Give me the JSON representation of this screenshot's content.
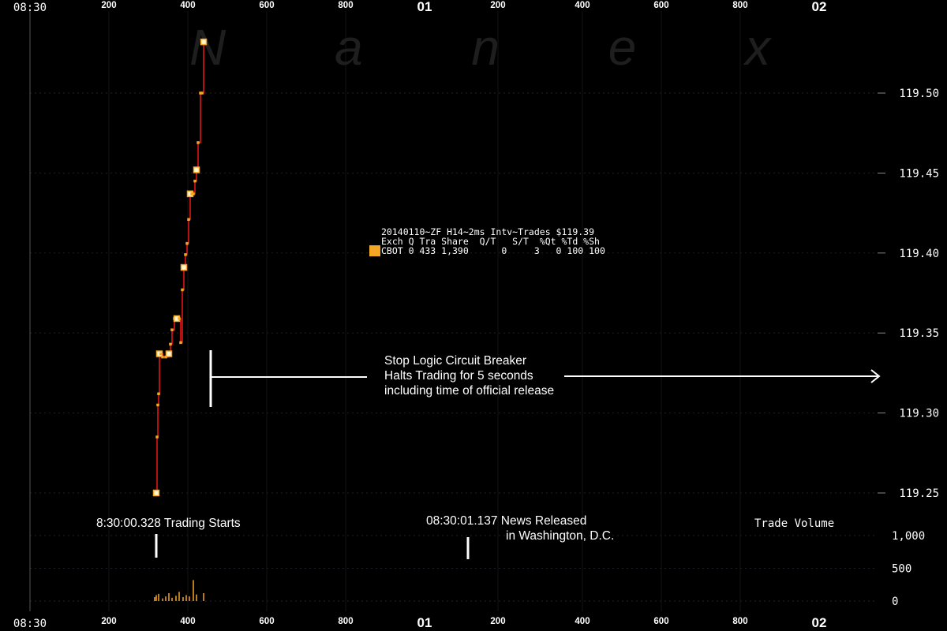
{
  "chart_data": {
    "type": "line",
    "title": "",
    "watermark": "Nanex",
    "x_axis": {
      "time_labels": [
        "08:30",
        "01",
        "02"
      ],
      "tick_labels": [
        "200",
        "400",
        "600",
        "800",
        "200",
        "400",
        "600",
        "800"
      ],
      "unit": "ms"
    },
    "y_axis": {
      "price_ticks": [
        "119.50",
        "119.45",
        "119.40",
        "119.35",
        "119.30",
        "119.25"
      ],
      "price_range": [
        119.233,
        119.548
      ],
      "volume_ticks": [
        "1,000",
        "500",
        "0"
      ],
      "volume_range": [
        0,
        1000
      ]
    },
    "series": [
      {
        "name": "",
        "x_ms": [
          320,
          322,
          324,
          326,
          328,
          332,
          336,
          344,
          352,
          356,
          360,
          366,
          372,
          378,
          382,
          386,
          390,
          394,
          398,
          402,
          406,
          410,
          414,
          418,
          422,
          426,
          432,
          436,
          440
        ],
        "y": [
          119.25,
          119.285,
          119.305,
          119.312,
          119.337,
          119.337,
          119.335,
          119.335,
          119.337,
          119.343,
          119.352,
          119.359,
          119.359,
          119.359,
          119.344,
          119.377,
          119.391,
          119.399,
          119.406,
          119.421,
          119.437,
          119.437,
          119.437,
          119.445,
          119.452,
          119.469,
          119.5,
          119.5,
          119.532
        ],
        "color": "#e01414",
        "marker_color": "#f5a623"
      }
    ],
    "volume_bars": {
      "x_ms": [
        316,
        320,
        326,
        336,
        344,
        352,
        360,
        370,
        378,
        388,
        396,
        404,
        414,
        422,
        440
      ],
      "values": [
        60,
        90,
        110,
        40,
        70,
        120,
        50,
        80,
        140,
        60,
        90,
        70,
        320,
        100,
        120
      ],
      "color": "#f5a623"
    },
    "trade_volume_label": "Trade Volume",
    "info_box": {
      "header": "20140110~ZF H14~2ms Intv~Trades $119.39",
      "columns": "Exch Q Tra Share  Q/T   S/T  %Qt %Td %Sh",
      "row": "CBOT 0 433 1,390      0     3   0 100 100",
      "swatch_color": "#f5a623"
    },
    "annotations": {
      "circuit_breaker": [
        "Stop Logic Circuit Breaker",
        "Halts Trading for 5 seconds",
        "including time of official release"
      ],
      "trading_starts": "8:30:00.328 Trading Starts",
      "news_released_line1": "08:30:01.137 News Released",
      "news_released_line2": "in Washington, D.C."
    },
    "grid": true
  }
}
